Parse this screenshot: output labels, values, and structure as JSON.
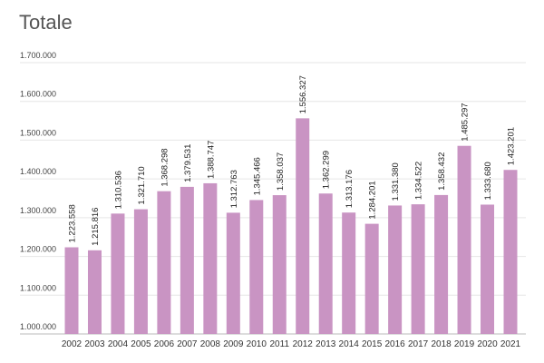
{
  "chart_data": {
    "type": "bar",
    "title": "Totale",
    "xlabel": "",
    "ylabel": "",
    "ylim": [
      1000000,
      1700000
    ],
    "yticks": [
      {
        "value": 1000000,
        "label": "1.000.000"
      },
      {
        "value": 1100000,
        "label": "1.100.000"
      },
      {
        "value": 1200000,
        "label": "1.200.000"
      },
      {
        "value": 1300000,
        "label": "1.300.000"
      },
      {
        "value": 1400000,
        "label": "1.400.000"
      },
      {
        "value": 1500000,
        "label": "1.500.000"
      },
      {
        "value": 1600000,
        "label": "1.600.000"
      },
      {
        "value": 1700000,
        "label": "1.700.000"
      }
    ],
    "grid": true,
    "bar_color": "#c994c3",
    "categories": [
      "2002",
      "2003",
      "2004",
      "2005",
      "2006",
      "2007",
      "2008",
      "2009",
      "2010",
      "2011",
      "2012",
      "2013",
      "2014",
      "2015",
      "2016",
      "2017",
      "2018",
      "2019",
      "2020",
      "2021"
    ],
    "values": [
      1223558,
      1215816,
      1310536,
      1321710,
      1368298,
      1379531,
      1388747,
      1312763,
      1345466,
      1358037,
      1556327,
      1362299,
      1313176,
      1284201,
      1331380,
      1334522,
      1358432,
      1485297,
      1333680,
      1423201
    ],
    "data_labels": [
      "1.223.558",
      "1.215.816",
      "1.310.536",
      "1.321.710",
      "1.368.298",
      "1.379.531",
      "1.388.747",
      "1.312.763",
      "1.345.466",
      "1.358.037",
      "1.556.327",
      "1.362.299",
      "1.313.176",
      "1.284.201",
      "1.331.380",
      "1.334.522",
      "1.358.432",
      "1.485.297",
      "1.333.680",
      "1.423.201"
    ]
  }
}
